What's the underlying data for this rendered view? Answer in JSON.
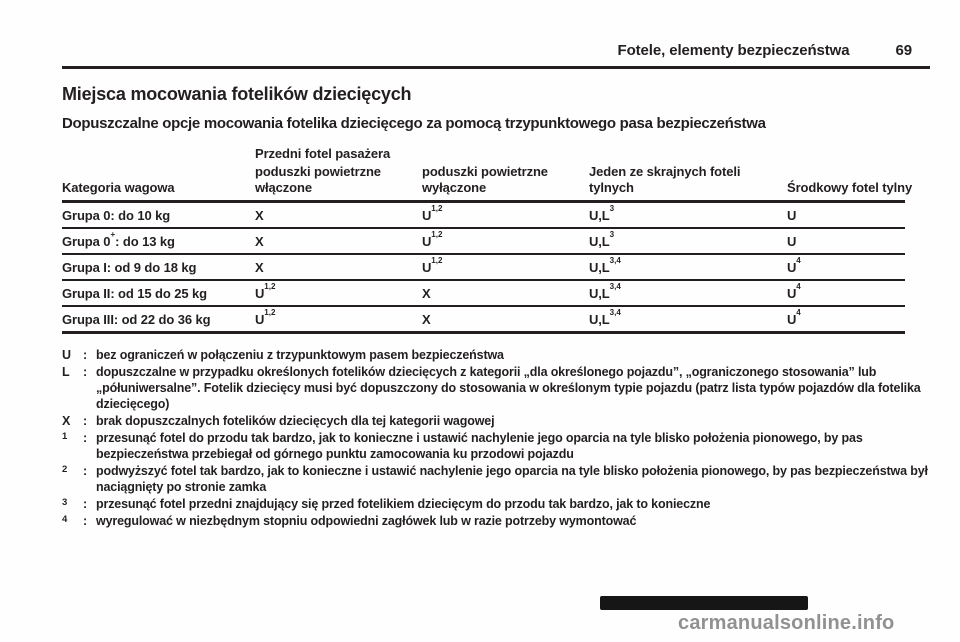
{
  "page": {
    "header": {
      "section_title": "Fotele, elementy bezpieczeństwa",
      "page_number": "69"
    },
    "title": "Miejsca mocowania fotelików dziecięcych",
    "subtitle": "Dopuszczalne opcje mocowania fotelika dziecięcego za pomocą trzypunktowego pasa bezpieczeństwa"
  },
  "table": {
    "group_header": "Przedni fotel pasażera",
    "columns": [
      "Kategoria wagowa",
      "poduszki powietrzne włączone",
      "poduszki powietrzne wyłączone",
      "Jeden ze skrajnych foteli tylnych",
      "Środkowy fotel tylny"
    ],
    "rows": [
      {
        "label": [
          [
            "Grupa 0: do 10 kg",
            false
          ]
        ],
        "cells": [
          [
            [
              "X",
              false
            ]
          ],
          [
            [
              "U",
              false
            ],
            [
              "1,2",
              true
            ]
          ],
          [
            [
              "U,L",
              false
            ],
            [
              "3",
              true
            ]
          ],
          [
            [
              "U",
              false
            ]
          ]
        ]
      },
      {
        "label": [
          [
            "Grupa 0",
            false
          ],
          [
            "+",
            true
          ],
          [
            ": do 13 kg",
            false
          ]
        ],
        "cells": [
          [
            [
              "X",
              false
            ]
          ],
          [
            [
              "U",
              false
            ],
            [
              "1,2",
              true
            ]
          ],
          [
            [
              "U,L",
              false
            ],
            [
              "3",
              true
            ]
          ],
          [
            [
              "U",
              false
            ]
          ]
        ]
      },
      {
        "label": [
          [
            "Grupa I: od 9 do 18 kg",
            false
          ]
        ],
        "cells": [
          [
            [
              "X",
              false
            ]
          ],
          [
            [
              "U",
              false
            ],
            [
              "1,2",
              true
            ]
          ],
          [
            [
              "U,L",
              false
            ],
            [
              "3,4",
              true
            ]
          ],
          [
            [
              "U",
              false
            ],
            [
              "4",
              true
            ]
          ]
        ]
      },
      {
        "label": [
          [
            "Grupa II: od 15 do 25 kg",
            false
          ]
        ],
        "cells": [
          [
            [
              "U",
              false
            ],
            [
              "1,2",
              true
            ]
          ],
          [
            [
              "X",
              false
            ]
          ],
          [
            [
              "U,L",
              false
            ],
            [
              "3,4",
              true
            ]
          ],
          [
            [
              "U",
              false
            ],
            [
              "4",
              true
            ]
          ]
        ]
      },
      {
        "label": [
          [
            "Grupa III: od 22 do 36 kg",
            false
          ]
        ],
        "cells": [
          [
            [
              "U",
              false
            ],
            [
              "1,2",
              true
            ]
          ],
          [
            [
              "X",
              false
            ]
          ],
          [
            [
              "U,L",
              false
            ],
            [
              "3,4",
              true
            ]
          ],
          [
            [
              "U",
              false
            ],
            [
              "4",
              true
            ]
          ]
        ]
      }
    ]
  },
  "legend": {
    "colon": ":",
    "items": [
      {
        "symbol": "U",
        "sup": false,
        "text": "bez ograniczeń w połączeniu z trzypunktowym pasem bezpieczeństwa"
      },
      {
        "symbol": "L",
        "sup": false,
        "text": "dopuszczalne w przypadku określonych fotelików dziecięcych z kategorii „dla określonego pojazdu”, „ograniczonego stosowania” lub „półuniwersalne”. Fotelik dziecięcy musi być dopuszczony do stosowania w określonym typie pojazdu (patrz lista typów pojazdów dla fotelika dziecięcego)"
      },
      {
        "symbol": "X",
        "sup": false,
        "text": "brak dopuszczalnych fotelików dziecięcych dla tej kategorii wagowej"
      },
      {
        "symbol": "1",
        "sup": true,
        "text": "przesunąć fotel do przodu tak bardzo, jak to konieczne i ustawić nachylenie jego oparcia na tyle blisko położenia pionowego, by pas bezpieczeństwa przebiegał od górnego punktu zamocowania ku przodowi pojazdu"
      },
      {
        "symbol": "2",
        "sup": true,
        "text": "podwyższyć fotel tak bardzo, jak to konieczne i ustawić nachylenie jego oparcia na tyle blisko położenia pionowego, by pas bezpieczeństwa był naciągnięty po stronie zamka"
      },
      {
        "symbol": "3",
        "sup": true,
        "text": "przesunąć fotel przedni znajdujący się przed fotelikiem dziecięcym do przodu tak bardzo, jak to konieczne"
      },
      {
        "symbol": "4",
        "sup": true,
        "text": "wyregulować w niezbędnym stopniu odpowiedni zagłówek lub w razie potrzeby wymontować"
      }
    ]
  },
  "watermark": {
    "text": "carmanualsonline.info"
  },
  "colors": {
    "text": "#231f20",
    "border": "#231f20",
    "watermark_text": "#919191",
    "watermark_bar": "#161616",
    "background": "#fefefe"
  }
}
